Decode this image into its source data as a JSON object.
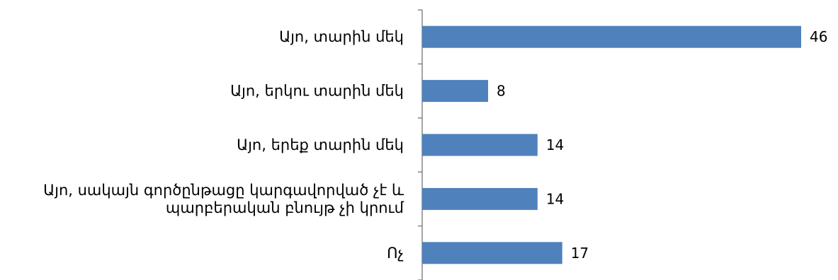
{
  "chart_data": {
    "type": "bar",
    "orientation": "horizontal",
    "categories": [
      [
        "Այո, տարին մեկ"
      ],
      [
        "Այո, երկու տարին մեկ"
      ],
      [
        "Այո, երեք տարին մեկ"
      ],
      [
        "Այո, սակայն գործընթացը կարգավորված չէ և",
        "պարբերական բնույթ չի կրում"
      ],
      [
        "Ոչ"
      ]
    ],
    "values": [
      46,
      8,
      14,
      14,
      17
    ],
    "xlim": [
      0,
      46
    ],
    "bar_color": "#4f81bd",
    "grid": false,
    "legend": "none",
    "data_labels": true
  }
}
